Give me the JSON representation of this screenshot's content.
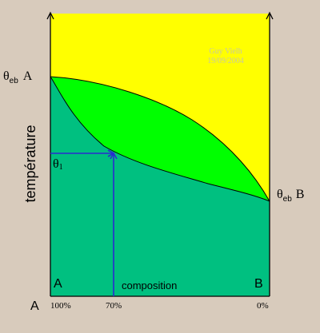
{
  "diagram": {
    "y_axis_label": "température",
    "x_axis_label": "composition",
    "boil_A": {
      "theta": "θ",
      "sub": "eb",
      "comp": "A"
    },
    "boil_B": {
      "theta": "θ",
      "sub": "eb",
      "comp": "B"
    },
    "theta1": {
      "theta": "θ",
      "sub": "1"
    },
    "corner_left": "A",
    "corner_right": "B",
    "origin_label": "A",
    "ticks": {
      "left": "100%",
      "middle": "70%",
      "right": "0%"
    },
    "watermark": {
      "line1": "Guy Vielh",
      "line2": "19/09/2004"
    },
    "colors": {
      "background": "#d8cbbc",
      "vapor_region": "#ffff00",
      "two_phase_region": "#00ff00",
      "liquid_region": "#00c080",
      "guide_lines": "#2a2ad0",
      "watermark": "#c8c8a0"
    }
  }
}
